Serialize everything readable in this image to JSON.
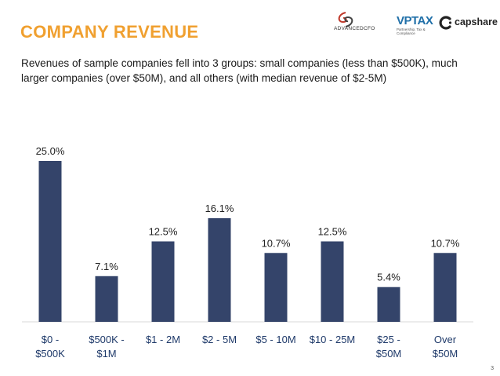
{
  "header": {
    "title": "COMPANY REVENUE",
    "subtitle": "Revenues of sample companies fell into 3 groups:  small companies (less than $500K), much larger companies (over $50M), and all others (with median revenue of $2-5M)"
  },
  "logos": {
    "advancedcfo": "ADVANCEDCFO",
    "vptax": "VPTAX",
    "vptax_tagline": "Partnership, Tax & Compliance",
    "capshare": "capshare"
  },
  "colors": {
    "title": "#f0a030",
    "bar": "#34446a",
    "tick_label": "#1f3a6a"
  },
  "page_number": "3",
  "chart_data": {
    "type": "bar",
    "categories": [
      [
        "$0 -",
        "$500K"
      ],
      [
        "$500K -",
        "$1M"
      ],
      [
        "$1 - 2M"
      ],
      [
        "$2 - 5M"
      ],
      [
        "$5 - 10M"
      ],
      [
        "$10 - 25M"
      ],
      [
        "$25 -",
        "$50M"
      ],
      [
        "Over",
        "$50M"
      ]
    ],
    "values": [
      25.0,
      7.1,
      12.5,
      16.1,
      10.7,
      12.5,
      5.4,
      10.7
    ],
    "data_labels": [
      "25.0%",
      "7.1%",
      "12.5%",
      "16.1%",
      "10.7%",
      "12.5%",
      "5.4%",
      "10.7%"
    ],
    "ylim": [
      0,
      25
    ],
    "grid": false,
    "legend": "none"
  }
}
